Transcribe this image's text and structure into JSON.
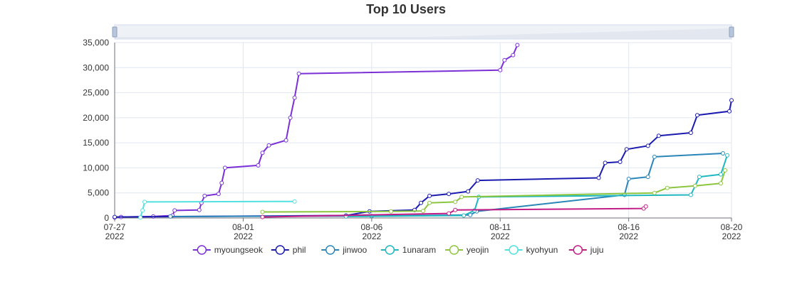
{
  "chart_data": {
    "type": "line",
    "title": "Top 10 Users",
    "xlabel": "",
    "ylabel": "",
    "x_axis": {
      "type": "time",
      "min": "2022-07-27",
      "max": "2022-08-20",
      "ticks": [
        {
          "date": "2022-07-27",
          "label": "07-27",
          "sub": "2022"
        },
        {
          "date": "2022-08-01",
          "label": "08-01",
          "sub": "2022"
        },
        {
          "date": "2022-08-06",
          "label": "08-06",
          "sub": "2022"
        },
        {
          "date": "2022-08-11",
          "label": "08-11",
          "sub": "2022"
        },
        {
          "date": "2022-08-16",
          "label": "08-16",
          "sub": "2022"
        },
        {
          "date": "2022-08-20",
          "label": "08-20",
          "sub": "2022"
        }
      ]
    },
    "y_axis": {
      "min": 0,
      "max": 35000,
      "ticks": [
        {
          "value": 0,
          "label": "0"
        },
        {
          "value": 5000,
          "label": "5,000"
        },
        {
          "value": 10000,
          "label": "10,000"
        },
        {
          "value": 15000,
          "label": "15,000"
        },
        {
          "value": 20000,
          "label": "20,000"
        },
        {
          "value": 25000,
          "label": "25,000"
        },
        {
          "value": 30000,
          "label": "30,000"
        },
        {
          "value": 35000,
          "label": "35,000"
        }
      ]
    },
    "grid": true,
    "legend_position": "bottom",
    "data_zoom_slider": true,
    "series": [
      {
        "name": "myoungseok",
        "color": "#7b2fd6",
        "points": [
          [
            "2022-07-27T00:00",
            100
          ],
          [
            "2022-07-27T06:00",
            200
          ],
          [
            "2022-07-28T12:00",
            300
          ],
          [
            "2022-07-29T06:00",
            500
          ],
          [
            "2022-07-29T08:00",
            1500
          ],
          [
            "2022-07-30T07:00",
            1600
          ],
          [
            "2022-07-30T09:00",
            3000
          ],
          [
            "2022-07-30T12:00",
            4400
          ],
          [
            "2022-07-31T01:00",
            4800
          ],
          [
            "2022-07-31T04:00",
            7000
          ],
          [
            "2022-07-31T07:00",
            10000
          ],
          [
            "2022-08-01T14:00",
            10500
          ],
          [
            "2022-08-01T18:00",
            13000
          ],
          [
            "2022-08-02T00:00",
            14500
          ],
          [
            "2022-08-02T16:00",
            15500
          ],
          [
            "2022-08-02T20:00",
            20000
          ],
          [
            "2022-08-03T00:00",
            24000
          ],
          [
            "2022-08-03T04:00",
            28800
          ],
          [
            "2022-08-11T00:00",
            29500
          ],
          [
            "2022-08-11T04:00",
            31500
          ],
          [
            "2022-08-11T12:00",
            32500
          ],
          [
            "2022-08-11T16:00",
            34500
          ]
        ]
      },
      {
        "name": "phil",
        "color": "#1b1bb0",
        "points": [
          [
            "2022-07-27T00:00",
            200
          ],
          [
            "2022-08-05T00:00",
            500
          ],
          [
            "2022-08-05T22:00",
            1300
          ],
          [
            "2022-08-07T16:00",
            1600
          ],
          [
            "2022-08-07T22:00",
            3000
          ],
          [
            "2022-08-08T06:00",
            4400
          ],
          [
            "2022-08-09T00:00",
            4800
          ],
          [
            "2022-08-09T18:00",
            5300
          ],
          [
            "2022-08-10T03:00",
            7500
          ],
          [
            "2022-08-14T20:00",
            8000
          ],
          [
            "2022-08-15T02:00",
            11000
          ],
          [
            "2022-08-15T16:00",
            11200
          ],
          [
            "2022-08-15T22:00",
            13700
          ],
          [
            "2022-08-16T18:00",
            14400
          ],
          [
            "2022-08-17T04:00",
            16400
          ],
          [
            "2022-08-18T10:00",
            17000
          ],
          [
            "2022-08-18T16:00",
            20500
          ],
          [
            "2022-08-19T22:00",
            21300
          ],
          [
            "2022-08-20T00:00",
            23500
          ]
        ]
      },
      {
        "name": "jinwoo",
        "color": "#2a86b8",
        "points": [
          [
            "2022-07-29T04:00",
            300
          ],
          [
            "2022-08-06T00:00",
            400
          ],
          [
            "2022-08-09T20:00",
            600
          ],
          [
            "2022-08-10T02:00",
            1300
          ],
          [
            "2022-08-15T20:00",
            4600
          ],
          [
            "2022-08-16T00:00",
            7800
          ],
          [
            "2022-08-16T18:00",
            8200
          ],
          [
            "2022-08-17T00:00",
            12200
          ],
          [
            "2022-08-19T16:00",
            12900
          ]
        ]
      },
      {
        "name": "1unaram",
        "color": "#1fb8c1",
        "points": [
          [
            "2022-08-05T00:00",
            300
          ],
          [
            "2022-08-09T14:00",
            500
          ],
          [
            "2022-08-10T00:00",
            1500
          ],
          [
            "2022-08-10T04:00",
            4200
          ],
          [
            "2022-08-18T10:00",
            4600
          ],
          [
            "2022-08-18T18:00",
            8200
          ],
          [
            "2022-08-19T14:00",
            8700
          ],
          [
            "2022-08-19T20:00",
            12500
          ]
        ]
      },
      {
        "name": "yeojin",
        "color": "#8cc63f",
        "points": [
          [
            "2022-08-01T18:00",
            1200
          ],
          [
            "2022-08-06T18:00",
            1300
          ],
          [
            "2022-08-08T00:00",
            1400
          ],
          [
            "2022-08-08T06:00",
            3000
          ],
          [
            "2022-08-09T06:00",
            3200
          ],
          [
            "2022-08-09T12:00",
            4200
          ],
          [
            "2022-08-17T00:00",
            5000
          ],
          [
            "2022-08-17T12:00",
            6000
          ],
          [
            "2022-08-18T14:00",
            6400
          ],
          [
            "2022-08-19T14:00",
            6900
          ],
          [
            "2022-08-19T18:00",
            9500
          ]
        ]
      },
      {
        "name": "kyohyun",
        "color": "#52e0e0",
        "points": [
          [
            "2022-07-28T00:00",
            100
          ],
          [
            "2022-07-28T02:00",
            1500
          ],
          [
            "2022-07-28T04:00",
            3200
          ],
          [
            "2022-08-03T00:00",
            3300
          ]
        ]
      },
      {
        "name": "juju",
        "color": "#c21d86",
        "points": [
          [
            "2022-08-01T18:00",
            200
          ],
          [
            "2022-08-09T00:00",
            900
          ],
          [
            "2022-08-09T06:00",
            1600
          ],
          [
            "2022-08-16T14:00",
            1900
          ],
          [
            "2022-08-16T16:00",
            2300
          ]
        ]
      }
    ]
  }
}
